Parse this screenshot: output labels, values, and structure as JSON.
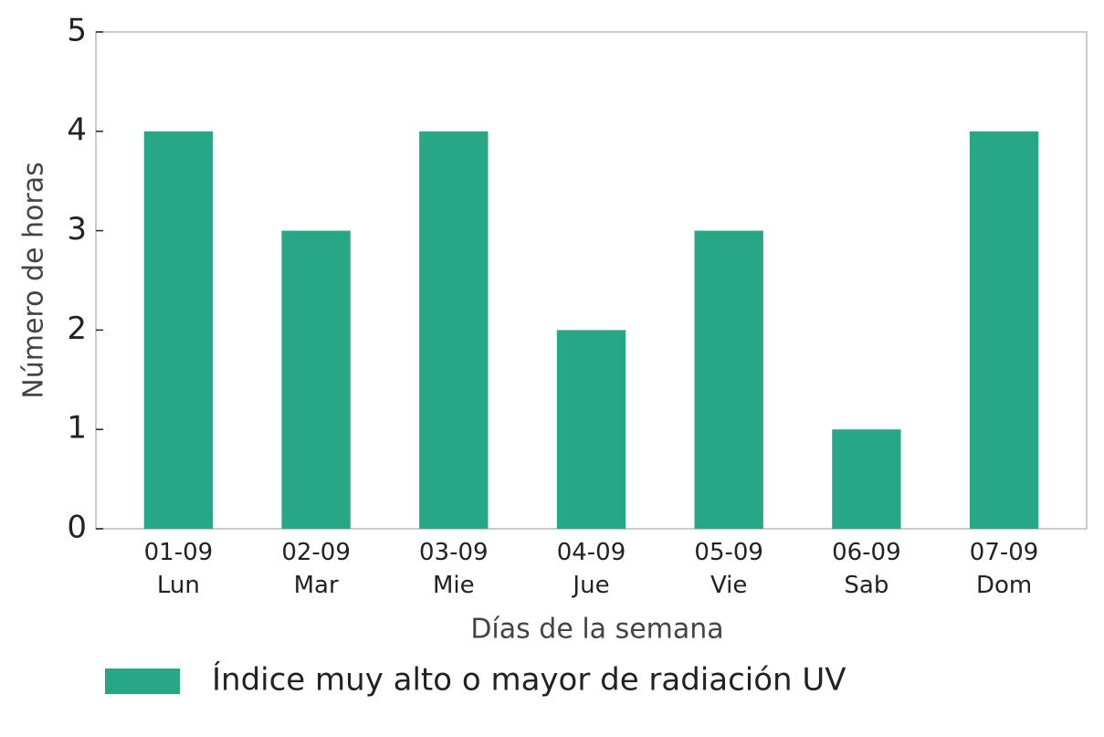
{
  "chart_data": {
    "type": "bar",
    "categories": [
      [
        "01-09",
        "Lun"
      ],
      [
        "02-09",
        "Mar"
      ],
      [
        "03-09",
        "Mie"
      ],
      [
        "04-09",
        "Jue"
      ],
      [
        "05-09",
        "Vie"
      ],
      [
        "06-09",
        "Sab"
      ],
      [
        "07-09",
        "Dom"
      ]
    ],
    "series": [
      {
        "name": "Índice muy alto o mayor de radiación UV",
        "color": "#28a787",
        "values": [
          4,
          3,
          4,
          2,
          3,
          1,
          4
        ]
      }
    ],
    "xlabel": "Días de la semana",
    "ylabel": "Número de horas",
    "ylim": [
      0,
      5
    ],
    "yticks": [
      0,
      1,
      2,
      3,
      4,
      5
    ],
    "legend": "bottom"
  }
}
